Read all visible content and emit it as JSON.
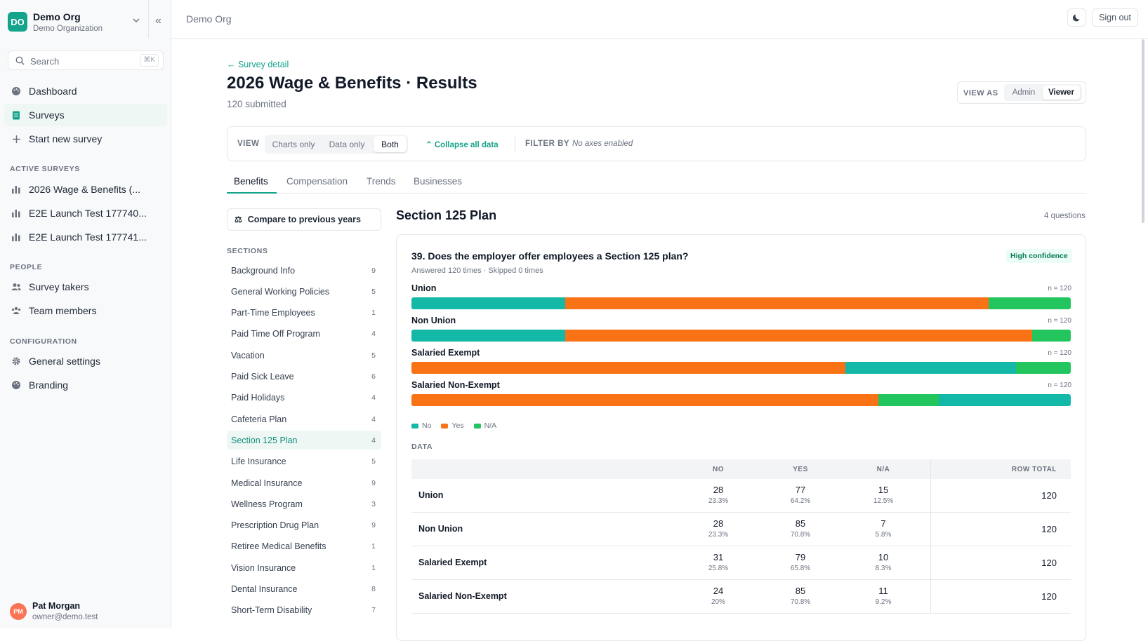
{
  "org": {
    "initials": "DO",
    "name": "Demo Org",
    "subtitle": "Demo Organization"
  },
  "search": {
    "placeholder": "Search",
    "shortcut": "⌘K"
  },
  "nav": {
    "main": [
      {
        "label": "Dashboard",
        "icon": "palette-icon"
      },
      {
        "label": "Surveys",
        "icon": "clipboard-icon"
      },
      {
        "label": "Start new survey",
        "icon": "plus-icon"
      }
    ],
    "active_surveys_label": "ACTIVE SURVEYS",
    "active_surveys": [
      "2026 Wage & Benefits (...",
      "E2E Launch Test 177740...",
      "E2E Launch Test 177741..."
    ],
    "people_label": "PEOPLE",
    "people": [
      "Survey takers",
      "Team members"
    ],
    "config_label": "CONFIGURATION",
    "config": [
      "General settings",
      "Branding"
    ]
  },
  "user": {
    "initials": "PM",
    "name": "Pat Morgan",
    "email": "owner@demo.test"
  },
  "topbar": {
    "breadcrumb": "Demo Org",
    "signout": "Sign out"
  },
  "page": {
    "back_link": "← Survey detail",
    "title": "2026 Wage & Benefits · Results",
    "submitted": "120 submitted",
    "view_as": {
      "label": "VIEW AS",
      "options": [
        "Admin",
        "Viewer"
      ],
      "selected": "Viewer"
    }
  },
  "toolbar": {
    "view_label": "VIEW",
    "view_options": [
      "Charts only",
      "Data only",
      "Both"
    ],
    "view_selected": "Both",
    "collapse_label": "Collapse all data",
    "filter_label": "FILTER BY",
    "filter_value": "No axes enabled"
  },
  "tabs": [
    "Benefits",
    "Compensation",
    "Trends",
    "Businesses"
  ],
  "tab_selected": "Benefits",
  "compare_label": "Compare to previous years",
  "sections_label": "SECTIONS",
  "sections": [
    {
      "label": "Background Info",
      "count": "9"
    },
    {
      "label": "General Working Policies",
      "count": "5"
    },
    {
      "label": "Part-Time Employees",
      "count": "1"
    },
    {
      "label": "Paid Time Off Program",
      "count": "4"
    },
    {
      "label": "Vacation",
      "count": "5"
    },
    {
      "label": "Paid Sick Leave",
      "count": "6"
    },
    {
      "label": "Paid Holidays",
      "count": "4"
    },
    {
      "label": "Cafeteria Plan",
      "count": "4"
    },
    {
      "label": "Section 125 Plan",
      "count": "4"
    },
    {
      "label": "Life Insurance",
      "count": "5"
    },
    {
      "label": "Medical Insurance",
      "count": "9"
    },
    {
      "label": "Wellness Program",
      "count": "3"
    },
    {
      "label": "Prescription Drug Plan",
      "count": "9"
    },
    {
      "label": "Retiree Medical Benefits",
      "count": "1"
    },
    {
      "label": "Vision Insurance",
      "count": "1"
    },
    {
      "label": "Dental Insurance",
      "count": "8"
    },
    {
      "label": "Short-Term Disability",
      "count": "7"
    }
  ],
  "section_active": "Section 125 Plan",
  "section": {
    "title": "Section 125 Plan",
    "count": "4 questions"
  },
  "question": {
    "title": "39.  Does the employer offer employees a Section 125 plan?",
    "meta": "Answered 120 times · Skipped 0 times",
    "confidence": "High confidence",
    "data_label": "DATA"
  },
  "colors": {
    "No": "#14b8a6",
    "Yes": "#f97316",
    "N/A": "#22c55e"
  },
  "chart_data": {
    "type": "bar",
    "stacked": true,
    "orientation": "horizontal",
    "legend": [
      "No",
      "Yes",
      "N/A"
    ],
    "rows": [
      {
        "name": "Union",
        "n": "n = 120",
        "segments": [
          {
            "k": "No",
            "v": 28
          },
          {
            "k": "Yes",
            "v": 77
          },
          {
            "k": "N/A",
            "v": 15
          }
        ]
      },
      {
        "name": "Non Union",
        "n": "n = 120",
        "segments": [
          {
            "k": "No",
            "v": 28
          },
          {
            "k": "Yes",
            "v": 85
          },
          {
            "k": "N/A",
            "v": 7
          }
        ]
      },
      {
        "name": "Salaried Exempt",
        "n": "n = 120",
        "segments": [
          {
            "k": "Yes",
            "v": 79
          },
          {
            "k": "No",
            "v": 31
          },
          {
            "k": "N/A",
            "v": 10
          }
        ]
      },
      {
        "name": "Salaried Non-Exempt",
        "n": "n = 120",
        "segments": [
          {
            "k": "Yes",
            "v": 85
          },
          {
            "k": "N/A",
            "v": 11
          },
          {
            "k": "No",
            "v": 24
          }
        ]
      }
    ]
  },
  "table": {
    "headers": [
      "NO",
      "YES",
      "N/A",
      "ROW TOTAL"
    ],
    "rows": [
      {
        "label": "Union",
        "no": "28",
        "no_p": "23.3%",
        "yes": "77",
        "yes_p": "64.2%",
        "na": "15",
        "na_p": "12.5%",
        "total": "120"
      },
      {
        "label": "Non Union",
        "no": "28",
        "no_p": "23.3%",
        "yes": "85",
        "yes_p": "70.8%",
        "na": "7",
        "na_p": "5.8%",
        "total": "120"
      },
      {
        "label": "Salaried Exempt",
        "no": "31",
        "no_p": "25.8%",
        "yes": "79",
        "yes_p": "65.8%",
        "na": "10",
        "na_p": "8.3%",
        "total": "120"
      },
      {
        "label": "Salaried Non-Exempt",
        "no": "24",
        "no_p": "20%",
        "yes": "85",
        "yes_p": "70.8%",
        "na": "11",
        "na_p": "9.2%",
        "total": "120"
      }
    ]
  }
}
